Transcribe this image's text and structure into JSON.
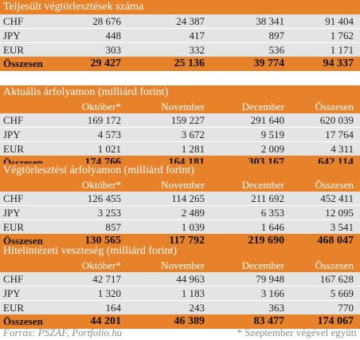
{
  "columns": [
    "Október*",
    "November",
    "December",
    "Összesen"
  ],
  "sections": [
    {
      "title": "Teljesült végtörlesztések száma",
      "header": [
        "",
        "Október*",
        "November",
        "December",
        "Összesen"
      ],
      "rows": [
        {
          "label": "CHF",
          "values": [
            "28 676",
            "24 387",
            "38 341",
            "91 404"
          ]
        },
        {
          "label": "JPY",
          "values": [
            "448",
            "417",
            "897",
            "1 762"
          ]
        },
        {
          "label": "EUR",
          "values": [
            "303",
            "332",
            "536",
            "1 171"
          ]
        }
      ],
      "total": {
        "label": "Összesen",
        "values": [
          "29 427",
          "25 136",
          "39 774",
          "94 337"
        ]
      }
    },
    {
      "title": "Aktuális árfolyamon (milliárd forint)",
      "header": [
        "",
        "Október*",
        "November",
        "December",
        "Összesen"
      ],
      "rows": [
        {
          "label": "CHF",
          "values": [
            "169 172",
            "159 227",
            "291 640",
            "620 039"
          ]
        },
        {
          "label": "JPY",
          "values": [
            "4 573",
            "3 672",
            "9 519",
            "17 764"
          ]
        },
        {
          "label": "EUR",
          "values": [
            "1 021",
            "1 281",
            "2 009",
            "4 311"
          ]
        }
      ],
      "total": {
        "label": "Összesen",
        "values": [
          "174 766",
          "164 181",
          "303 167",
          "642 114"
        ]
      }
    },
    {
      "title": "Végtörlesztési árfolyamon (milliárd forint)",
      "header": [
        "",
        "Október*",
        "November",
        "December",
        "Összesen"
      ],
      "rows": [
        {
          "label": "CHF",
          "values": [
            "126 455",
            "114 265",
            "211 692",
            "452 411"
          ]
        },
        {
          "label": "JPY",
          "values": [
            "3 253",
            "2 489",
            "6 353",
            "12 095"
          ]
        },
        {
          "label": "EUR",
          "values": [
            "857",
            "1 039",
            "1 646",
            "3 541"
          ]
        }
      ],
      "total": {
        "label": "Összesen",
        "values": [
          "130 565",
          "117 792",
          "219 690",
          "468 047"
        ]
      }
    },
    {
      "title": "Hitelintézeti veszteség (milliárd forint)",
      "header": [
        "",
        "Október*",
        "November",
        "December",
        "Összesen"
      ],
      "rows": [
        {
          "label": "CHF",
          "values": [
            "42 717",
            "44 963",
            "79 948",
            "167 628"
          ]
        },
        {
          "label": "JPY",
          "values": [
            "1 320",
            "1 183",
            "3 166",
            "5 669"
          ]
        },
        {
          "label": "EUR",
          "values": [
            "164",
            "243",
            "363",
            "770"
          ]
        }
      ],
      "total": {
        "label": "Összesen",
        "values": [
          "44 201",
          "46 389",
          "83 477",
          "174 067"
        ]
      }
    }
  ],
  "footer": {
    "source": "Forrás: PSZÁF, Portfolio.hu",
    "note": "* Szeptember végével együtt"
  },
  "colors": {
    "accent": "#e8822a",
    "row_alt": "#e4e4e4",
    "footer_text": "#8a8a8a"
  }
}
